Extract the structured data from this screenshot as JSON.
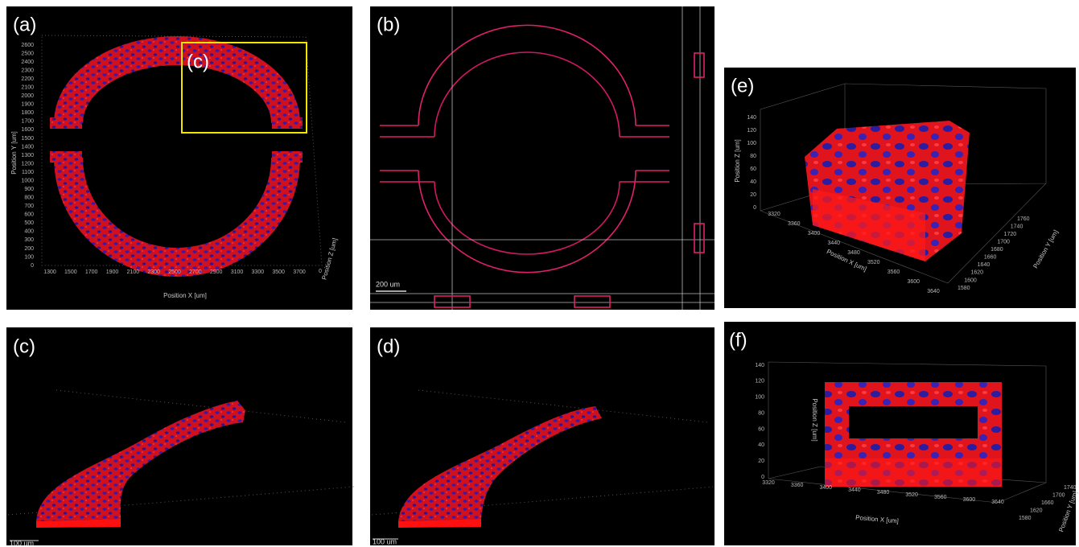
{
  "panels": [
    {
      "label": "(a)",
      "inset_label": "(c)",
      "y_axis_title": "Position Y [um]",
      "x_axis_title": "Position X [um]",
      "z_axis_title": "Position Z [um]",
      "y_ticks": [
        "0",
        "100",
        "200",
        "300",
        "400",
        "500",
        "600",
        "700",
        "800",
        "900",
        "1000",
        "1100",
        "1200",
        "1300",
        "1400",
        "1500",
        "1600",
        "1700",
        "1800",
        "1900",
        "2000",
        "2100",
        "2200",
        "2300",
        "2400",
        "2500",
        "2600"
      ],
      "x_ticks": [
        "1300",
        "1500",
        "1700",
        "1900",
        "2100",
        "2300",
        "2500",
        "2700",
        "2900",
        "3100",
        "3300",
        "3500",
        "3700"
      ],
      "z_ticks": [
        "0"
      ]
    },
    {
      "label": "(b)",
      "scale_bar": "200 um"
    },
    {
      "label": "(c)",
      "scale_bar": "100 um"
    },
    {
      "label": "(d)",
      "scale_bar": "100 um"
    },
    {
      "label": "(e)",
      "z_axis_title": "Position Z [um]",
      "x_axis_title": "Position X [um]",
      "y_axis_title": "Position Y [um]",
      "z_ticks": [
        "0",
        "20",
        "40",
        "60",
        "80",
        "100",
        "120",
        "140"
      ],
      "x_ticks": [
        "3320",
        "3360",
        "3400",
        "3440",
        "3480",
        "3520",
        "3560",
        "3600",
        "3640"
      ],
      "y_ticks": [
        "1580",
        "1600",
        "1620",
        "1640",
        "1660",
        "1680",
        "1700",
        "1720",
        "1740",
        "1760"
      ]
    },
    {
      "label": "(f)",
      "z_axis_title": "Position Z [um]",
      "x_axis_title": "Position X [um]",
      "y_axis_title": "Position Y [um]",
      "z_ticks": [
        "0",
        "20",
        "40",
        "60",
        "80",
        "100",
        "120",
        "140"
      ],
      "x_ticks": [
        "3320",
        "3360",
        "3400",
        "3440",
        "3480",
        "3520",
        "3560",
        "3600",
        "3640"
      ],
      "y_ticks": [
        "1580",
        "1620",
        "1660",
        "1700",
        "1740"
      ]
    }
  ]
}
